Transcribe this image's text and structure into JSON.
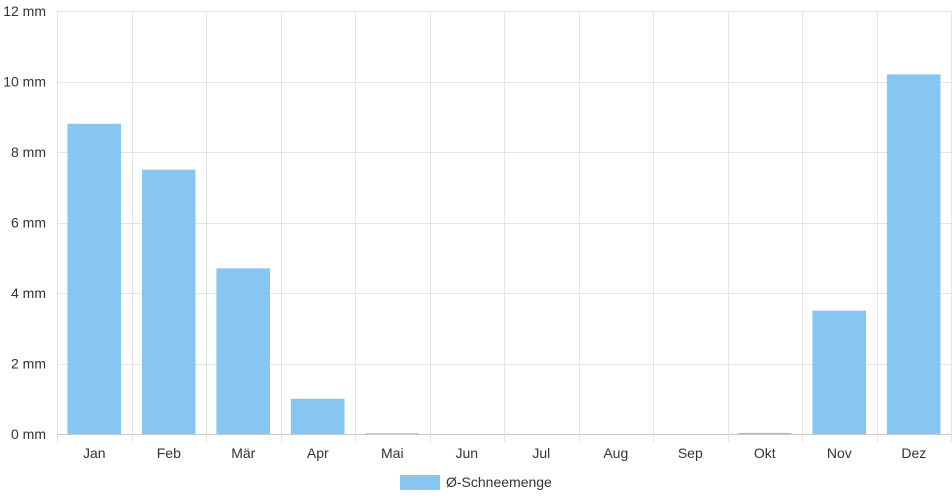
{
  "chart_data": {
    "type": "bar",
    "categories": [
      "Jan",
      "Feb",
      "Mär",
      "Apr",
      "Mai",
      "Jun",
      "Jul",
      "Aug",
      "Sep",
      "Okt",
      "Nov",
      "Dez"
    ],
    "series": [
      {
        "name": "Ø-Schneemenge",
        "values": [
          8.8,
          7.5,
          4.7,
          1.0,
          0.02,
          0,
          0,
          0,
          0,
          0.03,
          3.5,
          10.2
        ],
        "color": "#88c6f2"
      }
    ],
    "ylim": [
      0,
      12
    ],
    "yticks": [
      0,
      2,
      4,
      6,
      8,
      10,
      12
    ],
    "ytick_labels": [
      "0 mm",
      "2 mm",
      "4 mm",
      "6 mm",
      "8 mm",
      "10 mm",
      "12 mm"
    ],
    "grid": true,
    "legend_position": "bottom-center"
  }
}
